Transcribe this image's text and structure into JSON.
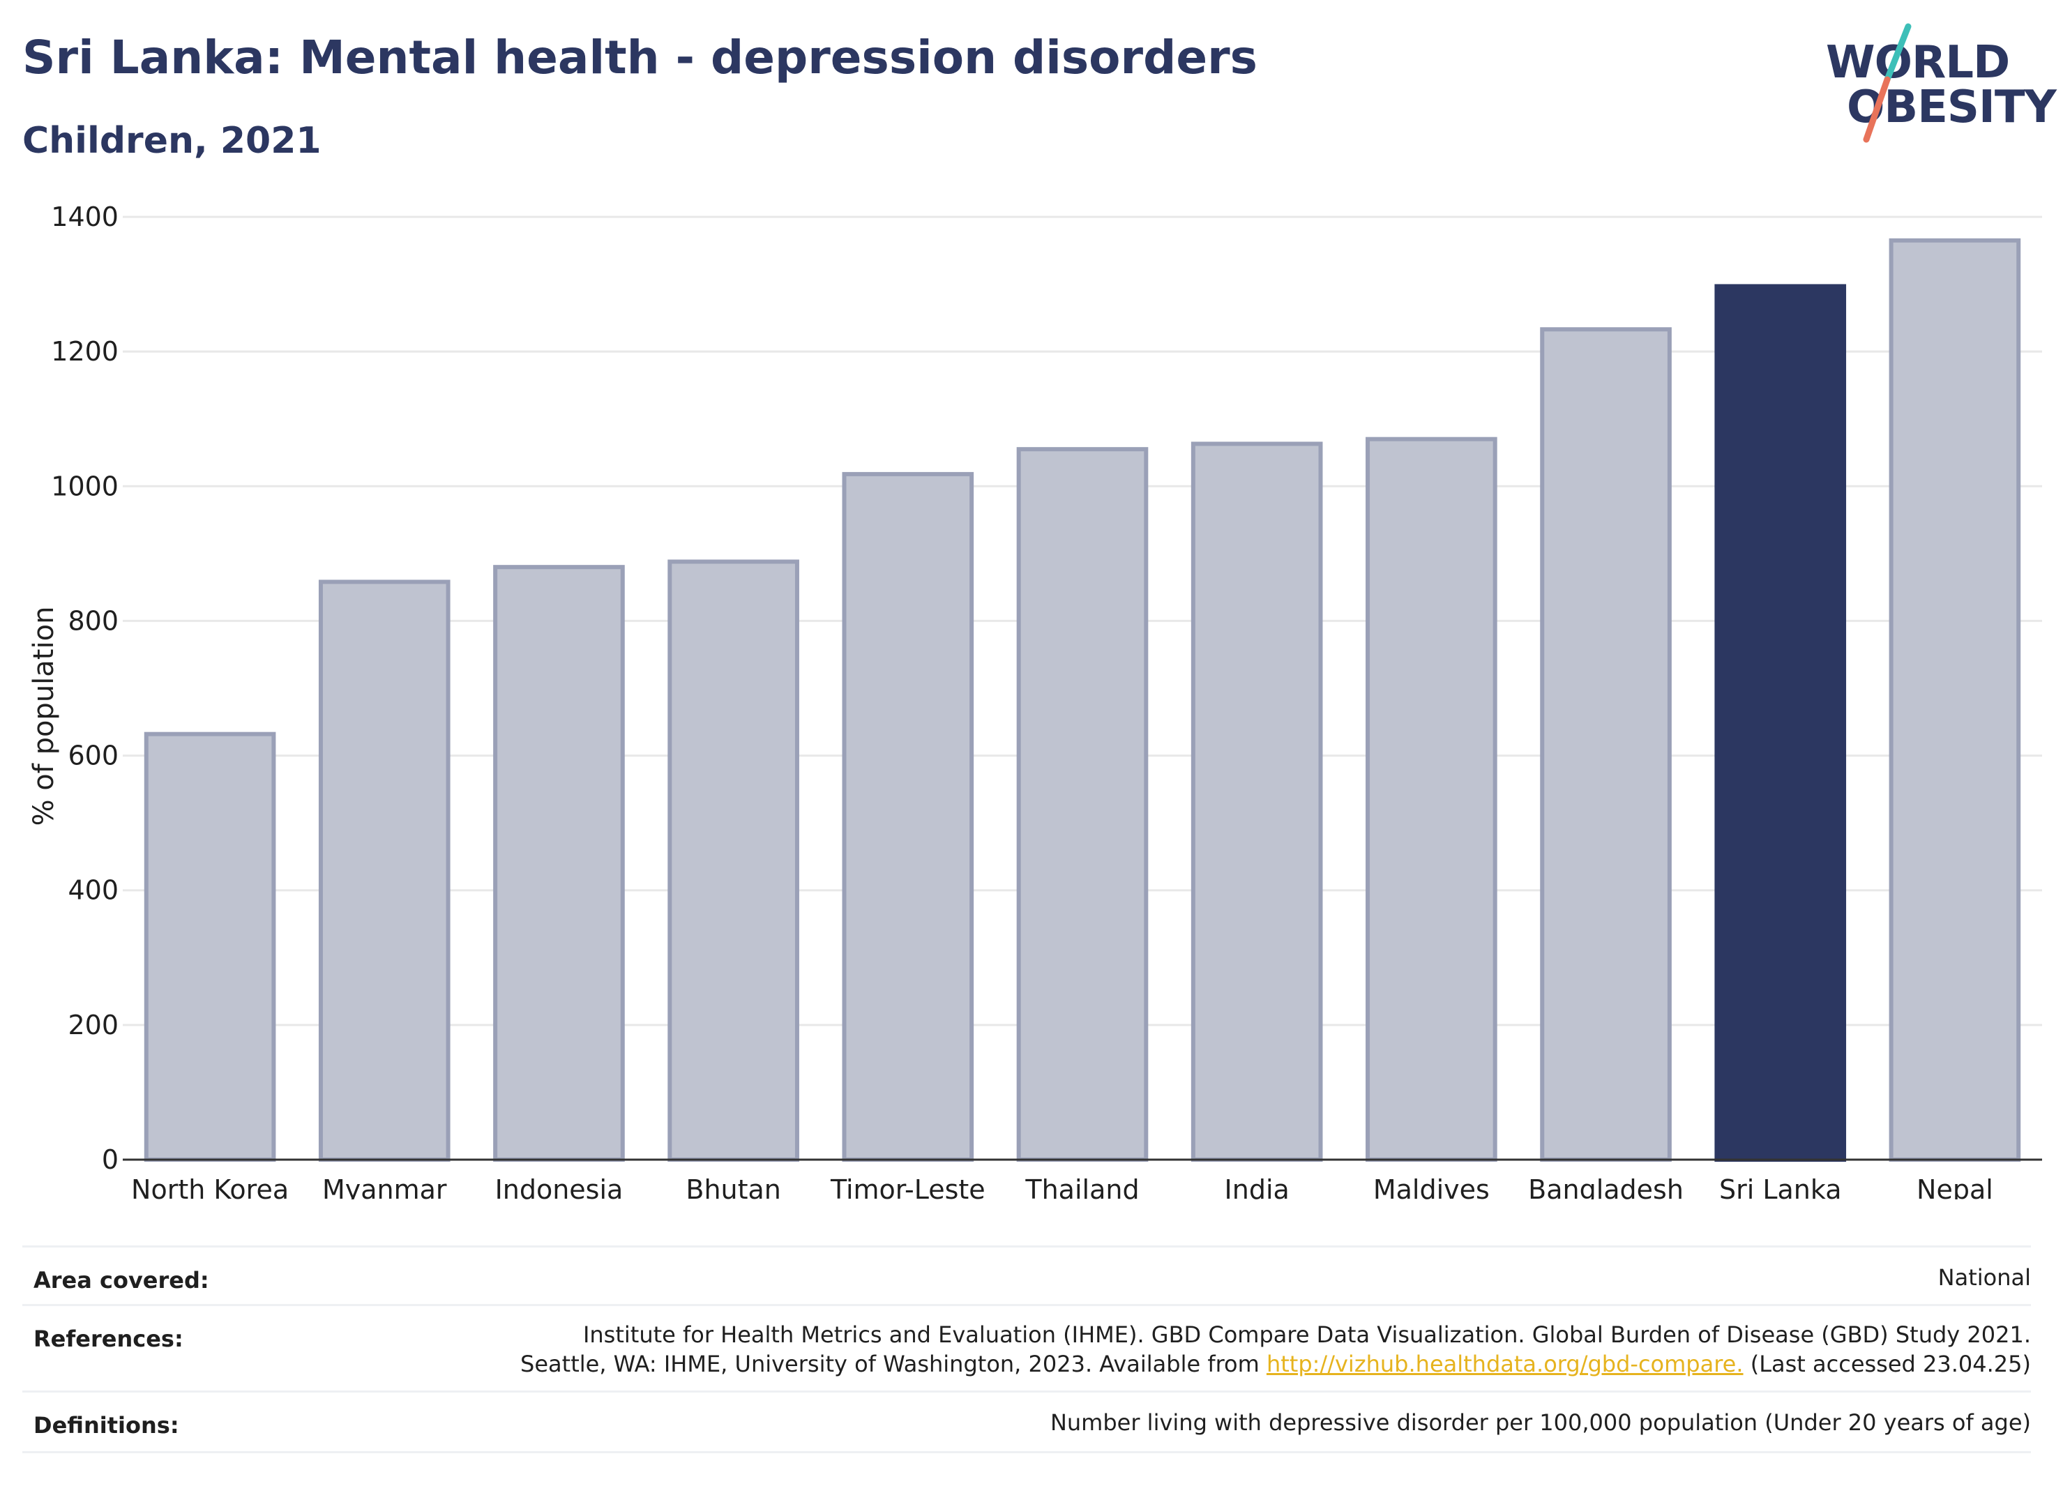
{
  "header": {
    "title": "Sri Lanka: Mental health - depression disorders",
    "subtitle": "Children, 2021"
  },
  "logo": {
    "line1": "WORLD",
    "line2": "OBESITY",
    "colors": {
      "text": "#2c3761",
      "slash_top": "#3dbfb8",
      "slash_bottom": "#e8735a"
    }
  },
  "chart_data": {
    "type": "bar",
    "categories": [
      "North Korea",
      "Myanmar",
      "Indonesia",
      "Bhutan",
      "Timor-Leste",
      "Thailand",
      "India",
      "Maldives",
      "Bangladesh",
      "Sri Lanka",
      "Nepal"
    ],
    "values": [
      632,
      858,
      880,
      888,
      1018,
      1055,
      1063,
      1070,
      1233,
      1297,
      1365
    ],
    "highlight": "Sri Lanka",
    "ylabel": "% of population",
    "xlabel": "",
    "ylim": [
      0,
      1400
    ],
    "yticks": [
      0,
      200,
      400,
      600,
      800,
      1000,
      1200,
      1400
    ],
    "grid": true,
    "colors": {
      "bar": "#bfc3d0",
      "bar_border": "#9aa0b7",
      "highlight": "#2c3761",
      "grid": "#e8e8e8",
      "axis": "#333333"
    }
  },
  "meta": {
    "area_label": "Area covered:",
    "area_value": "National",
    "references_label": "References:",
    "references_line1": "Institute for Health Metrics and Evaluation (IHME). GBD Compare Data Visualization. Global Burden of Disease (GBD) Study 2021.",
    "references_line2_pre": "Seattle, WA: IHME, University of Washington, 2023. Available from ",
    "references_link": "http://vizhub.healthdata.org/gbd-compare.",
    "references_line2_post": " (Last accessed 23.04.25)",
    "definitions_label": "Definitions:",
    "definitions_value": "Number living with depressive disorder per 100,000 population (Under 20 years of age)"
  }
}
